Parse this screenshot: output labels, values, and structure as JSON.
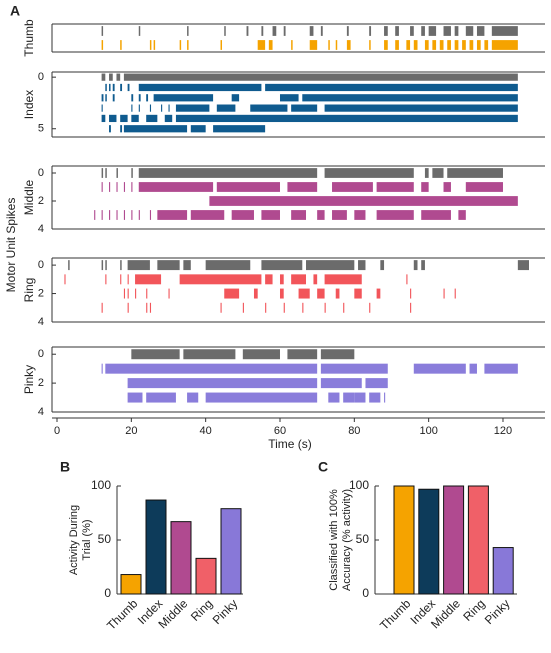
{
  "chart_data": [
    {
      "type": "raster",
      "panel": "A",
      "xlabel": "Time (s)",
      "ylabel": "Motor Unit Spikes",
      "xlim": [
        0,
        127
      ],
      "xticks": [
        0,
        20,
        40,
        60,
        80,
        100,
        120
      ],
      "activity_color": "#6b6b6b",
      "subplots": [
        {
          "label": "Thumb",
          "color": "#f5a300",
          "ylim": [
            -0.5,
            1.5
          ],
          "yticks": [],
          "activity": [
            [
              12,
              12.4
            ],
            [
              22,
              22.4
            ],
            [
              35,
              35.4
            ],
            [
              45,
              45.4
            ],
            [
              51,
              51.5
            ],
            [
              55,
              55.5
            ],
            [
              58,
              59
            ],
            [
              61,
              61.5
            ],
            [
              68,
              69
            ],
            [
              71,
              71.5
            ],
            [
              78,
              78.5
            ],
            [
              84,
              84.5
            ],
            [
              88,
              89
            ],
            [
              91,
              92
            ],
            [
              95,
              96
            ],
            [
              98,
              99
            ],
            [
              100,
              102
            ],
            [
              104,
              106
            ],
            [
              107,
              108
            ],
            [
              110,
              112
            ],
            [
              113,
              115
            ],
            [
              117,
              124
            ]
          ],
          "units": [
            [
              [
                12,
                12.4
              ],
              [
                17,
                17.4
              ],
              [
                25,
                25.4
              ],
              [
                26,
                26.4
              ],
              [
                33,
                33.4
              ],
              [
                35,
                35.4
              ],
              [
                44,
                44.4
              ],
              [
                54,
                56
              ],
              [
                57,
                58
              ],
              [
                63,
                63.4
              ],
              [
                68,
                70
              ],
              [
                73,
                73.4
              ],
              [
                75,
                75.4
              ],
              [
                78,
                79
              ],
              [
                84,
                84.4
              ],
              [
                88,
                89
              ],
              [
                91,
                92
              ],
              [
                94,
                95
              ],
              [
                96,
                97
              ],
              [
                99,
                100
              ],
              [
                101,
                102
              ],
              [
                103,
                104
              ],
              [
                105,
                106
              ],
              [
                107,
                108
              ],
              [
                109,
                110
              ],
              [
                111,
                112
              ],
              [
                113,
                114
              ],
              [
                115,
                116
              ],
              [
                117,
                124
              ]
            ]
          ]
        },
        {
          "label": "Index",
          "color": "#0f5b8f",
          "ylim": [
            -0.5,
            5.8
          ],
          "yticks": [
            0,
            5
          ],
          "activity": [
            [
              12,
              13
            ],
            [
              14,
              15
            ],
            [
              16,
              17
            ],
            [
              18,
              124
            ]
          ],
          "units": [
            [
              [
                13,
                13.4
              ],
              [
                14,
                14.4
              ],
              [
                15,
                15.5
              ],
              [
                17,
                17.5
              ],
              [
                19,
                19.5
              ],
              [
                22,
                55
              ],
              [
                56,
                124
              ]
            ],
            [
              [
                12,
                12.5
              ],
              [
                13,
                13.4
              ],
              [
                15,
                15.5
              ],
              [
                20,
                20.5
              ],
              [
                22,
                22.5
              ],
              [
                24,
                24.5
              ],
              [
                26,
                42
              ],
              [
                47,
                49
              ],
              [
                60,
                65
              ],
              [
                66,
                124
              ]
            ],
            [
              [
                12,
                12.3
              ],
              [
                20,
                20.3
              ],
              [
                22,
                22.3
              ],
              [
                25,
                25.3
              ],
              [
                28,
                28.3
              ],
              [
                30,
                30.3
              ],
              [
                32,
                41
              ],
              [
                43,
                48
              ],
              [
                52,
                62
              ],
              [
                63,
                70
              ],
              [
                72,
                124
              ]
            ],
            [
              [
                12,
                13
              ],
              [
                14,
                16
              ],
              [
                17,
                19
              ],
              [
                20,
                22
              ],
              [
                24,
                27
              ],
              [
                29,
                31
              ],
              [
                32,
                124
              ]
            ],
            [
              [
                14,
                14.5
              ],
              [
                17,
                17.5
              ],
              [
                18,
                35
              ],
              [
                36,
                40
              ],
              [
                42,
                56
              ]
            ]
          ]
        },
        {
          "label": "Middle",
          "color": "#b04a90",
          "ylim": [
            -0.5,
            4
          ],
          "yticks": [
            0,
            2,
            4
          ],
          "activity": [
            [
              12,
              12.4
            ],
            [
              13,
              13.4
            ],
            [
              16,
              16.4
            ],
            [
              20,
              20.4
            ],
            [
              22,
              70
            ],
            [
              72,
              96
            ],
            [
              99,
              100
            ],
            [
              101,
              104
            ],
            [
              105,
              120
            ]
          ],
          "units": [
            [
              [
                12,
                12.3
              ],
              [
                14,
                14.3
              ],
              [
                16,
                16.3
              ],
              [
                18,
                18.3
              ],
              [
                20,
                20.3
              ],
              [
                22,
                42
              ],
              [
                43,
                60
              ],
              [
                62,
                70
              ],
              [
                74,
                85
              ],
              [
                86,
                96
              ],
              [
                98,
                100
              ],
              [
                104,
                106
              ],
              [
                110,
                120
              ]
            ],
            [
              [
                41,
                124
              ]
            ],
            [
              [
                10,
                10.3
              ],
              [
                12,
                12.3
              ],
              [
                14,
                14.3
              ],
              [
                16,
                16.3
              ],
              [
                18,
                18.3
              ],
              [
                20,
                20.3
              ],
              [
                22,
                22.3
              ],
              [
                25,
                25.3
              ],
              [
                27,
                35
              ],
              [
                36,
                45
              ],
              [
                47,
                53
              ],
              [
                55,
                60
              ],
              [
                63,
                67
              ],
              [
                70,
                72
              ],
              [
                74,
                78
              ],
              [
                80,
                83
              ],
              [
                86,
                96
              ],
              [
                98,
                106
              ],
              [
                108,
                110
              ]
            ]
          ]
        },
        {
          "label": "Ring",
          "color": "#f2555a",
          "ylim": [
            -0.5,
            4
          ],
          "yticks": [
            0,
            2,
            4
          ],
          "activity": [
            [
              3,
              3.4
            ],
            [
              12,
              12.4
            ],
            [
              13,
              13.4
            ],
            [
              17,
              17.4
            ],
            [
              19,
              25
            ],
            [
              27,
              33
            ],
            [
              34,
              36
            ],
            [
              40,
              52
            ],
            [
              55,
              66
            ],
            [
              67,
              80
            ],
            [
              81,
              83
            ],
            [
              87,
              88
            ],
            [
              96,
              97
            ],
            [
              98,
              99
            ],
            [
              124,
              127
            ]
          ],
          "units": [
            [
              [
                2,
                2.3
              ],
              [
                13,
                13.3
              ],
              [
                17,
                17.3
              ],
              [
                19,
                19.3
              ],
              [
                21,
                28
              ],
              [
                33,
                55
              ],
              [
                56,
                58
              ],
              [
                60,
                61
              ],
              [
                63,
                67
              ],
              [
                69,
                70
              ],
              [
                72,
                82
              ],
              [
                94,
                94.3
              ]
            ],
            [
              [
                18,
                18.3
              ],
              [
                19,
                19.3
              ],
              [
                21,
                21.3
              ],
              [
                24,
                24.3
              ],
              [
                30,
                30.3
              ],
              [
                45,
                49
              ],
              [
                53,
                54
              ],
              [
                60,
                61
              ],
              [
                65,
                68
              ],
              [
                70,
                72
              ],
              [
                75,
                76
              ],
              [
                80,
                82
              ],
              [
                86,
                87
              ],
              [
                95,
                95.3
              ],
              [
                104,
                104.3
              ],
              [
                107,
                107.3
              ]
            ],
            [
              [
                12,
                12.3
              ],
              [
                19,
                19.3
              ],
              [
                24,
                24.3
              ],
              [
                25,
                25.3
              ],
              [
                44,
                44.3
              ],
              [
                50,
                50.3
              ],
              [
                56,
                56.3
              ],
              [
                61,
                61.3
              ],
              [
                66,
                66.3
              ],
              [
                72,
                72.3
              ],
              [
                77,
                77.3
              ],
              [
                84,
                84.3
              ],
              [
                95,
                95.3
              ]
            ]
          ]
        },
        {
          "label": "Pinky",
          "color": "#8a7ddb",
          "ylim": [
            -0.5,
            4
          ],
          "yticks": [
            0,
            2,
            4
          ],
          "activity": [
            [
              20,
              33
            ],
            [
              34,
              48
            ],
            [
              50,
              60
            ],
            [
              62,
              70
            ],
            [
              71,
              80
            ]
          ],
          "units": [
            [
              [
                12,
                12.3
              ],
              [
                13,
                70
              ],
              [
                71,
                89
              ],
              [
                96,
                110
              ],
              [
                111,
                113
              ],
              [
                115,
                124
              ]
            ],
            [
              [
                19,
                70
              ],
              [
                71,
                82
              ],
              [
                83,
                89
              ]
            ],
            [
              [
                19,
                23
              ],
              [
                24,
                32
              ],
              [
                35,
                38
              ],
              [
                40,
                70
              ],
              [
                73,
                76
              ],
              [
                77,
                80
              ],
              [
                80,
                83
              ],
              [
                84,
                87
              ],
              [
                88,
                88.3
              ]
            ]
          ]
        }
      ]
    },
    {
      "type": "bar",
      "panel": "B",
      "ylabel": [
        "Activity During",
        "Trial (%)"
      ],
      "categories": [
        "Thumb",
        "Index",
        "Middle",
        "Ring",
        "Pinky"
      ],
      "values": [
        18,
        87,
        67,
        33,
        79
      ],
      "colors": [
        "#f5a300",
        "#0d3b5a",
        "#b04a90",
        "#f06068",
        "#8878d8"
      ],
      "ylim": [
        0,
        100
      ],
      "yticks": [
        0,
        50,
        100
      ]
    },
    {
      "type": "bar",
      "panel": "C",
      "ylabel": [
        "Classified with 100%",
        "Accuracy (% activity)"
      ],
      "categories": [
        "Thumb",
        "Index",
        "Middle",
        "Ring",
        "Pinky"
      ],
      "values": [
        100,
        97,
        100,
        100,
        43
      ],
      "colors": [
        "#f5a300",
        "#0d3b5a",
        "#b04a90",
        "#f06068",
        "#8878d8"
      ],
      "ylim": [
        0,
        100
      ],
      "yticks": [
        0,
        50,
        100
      ]
    }
  ]
}
